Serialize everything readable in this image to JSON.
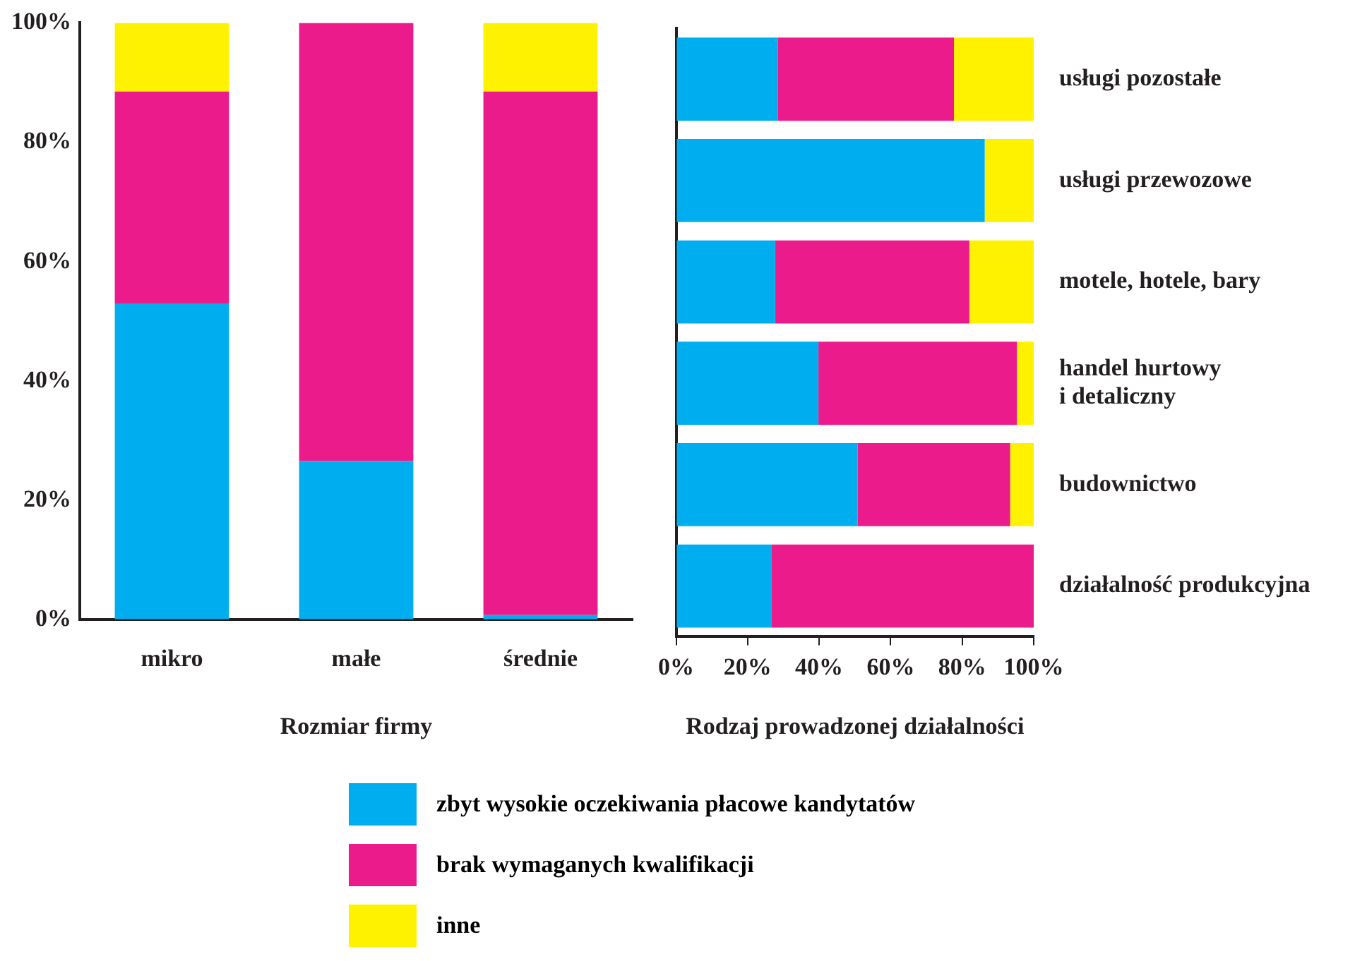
{
  "chart_data": [
    {
      "type": "bar",
      "stacked": true,
      "xlabel": "Rozmiar firmy",
      "categories": [
        "mikro",
        "małe",
        "średnie"
      ],
      "series": [
        {
          "name": "zbyt wysokie oczekiwania płacowe kandytatów",
          "color": "#00aeef",
          "values": [
            53,
            26.6,
            0.8
          ]
        },
        {
          "name": "brak wymaganych kwalifikacji",
          "color": "#ec1b8c",
          "values": [
            35.5,
            73.4,
            87.7
          ]
        },
        {
          "name": "inne",
          "color": "#fff200",
          "values": [
            11.5,
            0,
            11.5
          ]
        }
      ],
      "ylim": [
        0,
        100
      ],
      "yticks": [
        {
          "value": 0,
          "label": "0%"
        },
        {
          "value": 20,
          "label": "20%"
        },
        {
          "value": 40,
          "label": "40%"
        },
        {
          "value": 60,
          "label": "60%"
        },
        {
          "value": 80,
          "label": "80%"
        },
        {
          "value": 100,
          "label": "100%"
        }
      ],
      "grid": false,
      "legend": "bottom"
    },
    {
      "type": "bar",
      "stacked": true,
      "orientation": "horizontal",
      "xlabel": "Rodzaj prowadzonej działalności",
      "categories": [
        "usługi pozostałe",
        "usługi przewozowe",
        "motele, hotele, bary",
        "handel hurtowy i detaliczny",
        "budownictwo",
        "działalność produkcyjna"
      ],
      "series": [
        {
          "color": "#00aeef",
          "values": [
            28.5,
            86.3,
            27.7,
            39.8,
            50.8,
            26.6
          ]
        },
        {
          "color": "#ec1b8c",
          "values": [
            49.2,
            0,
            54.3,
            55.5,
            42.6,
            73.4
          ]
        },
        {
          "color": "#fff200",
          "values": [
            22.3,
            13.7,
            18,
            4.7,
            6.6,
            0
          ]
        }
      ],
      "xlim": [
        0,
        100
      ],
      "xticks": [
        {
          "value": 0,
          "label": "0%"
        },
        {
          "value": 20,
          "label": "20%"
        },
        {
          "value": 40,
          "label": "40%"
        },
        {
          "value": 60,
          "label": "60%"
        },
        {
          "value": 80,
          "label": "80%"
        },
        {
          "value": 100,
          "label": "100%"
        }
      ],
      "grid": false,
      "legend": false
    }
  ]
}
